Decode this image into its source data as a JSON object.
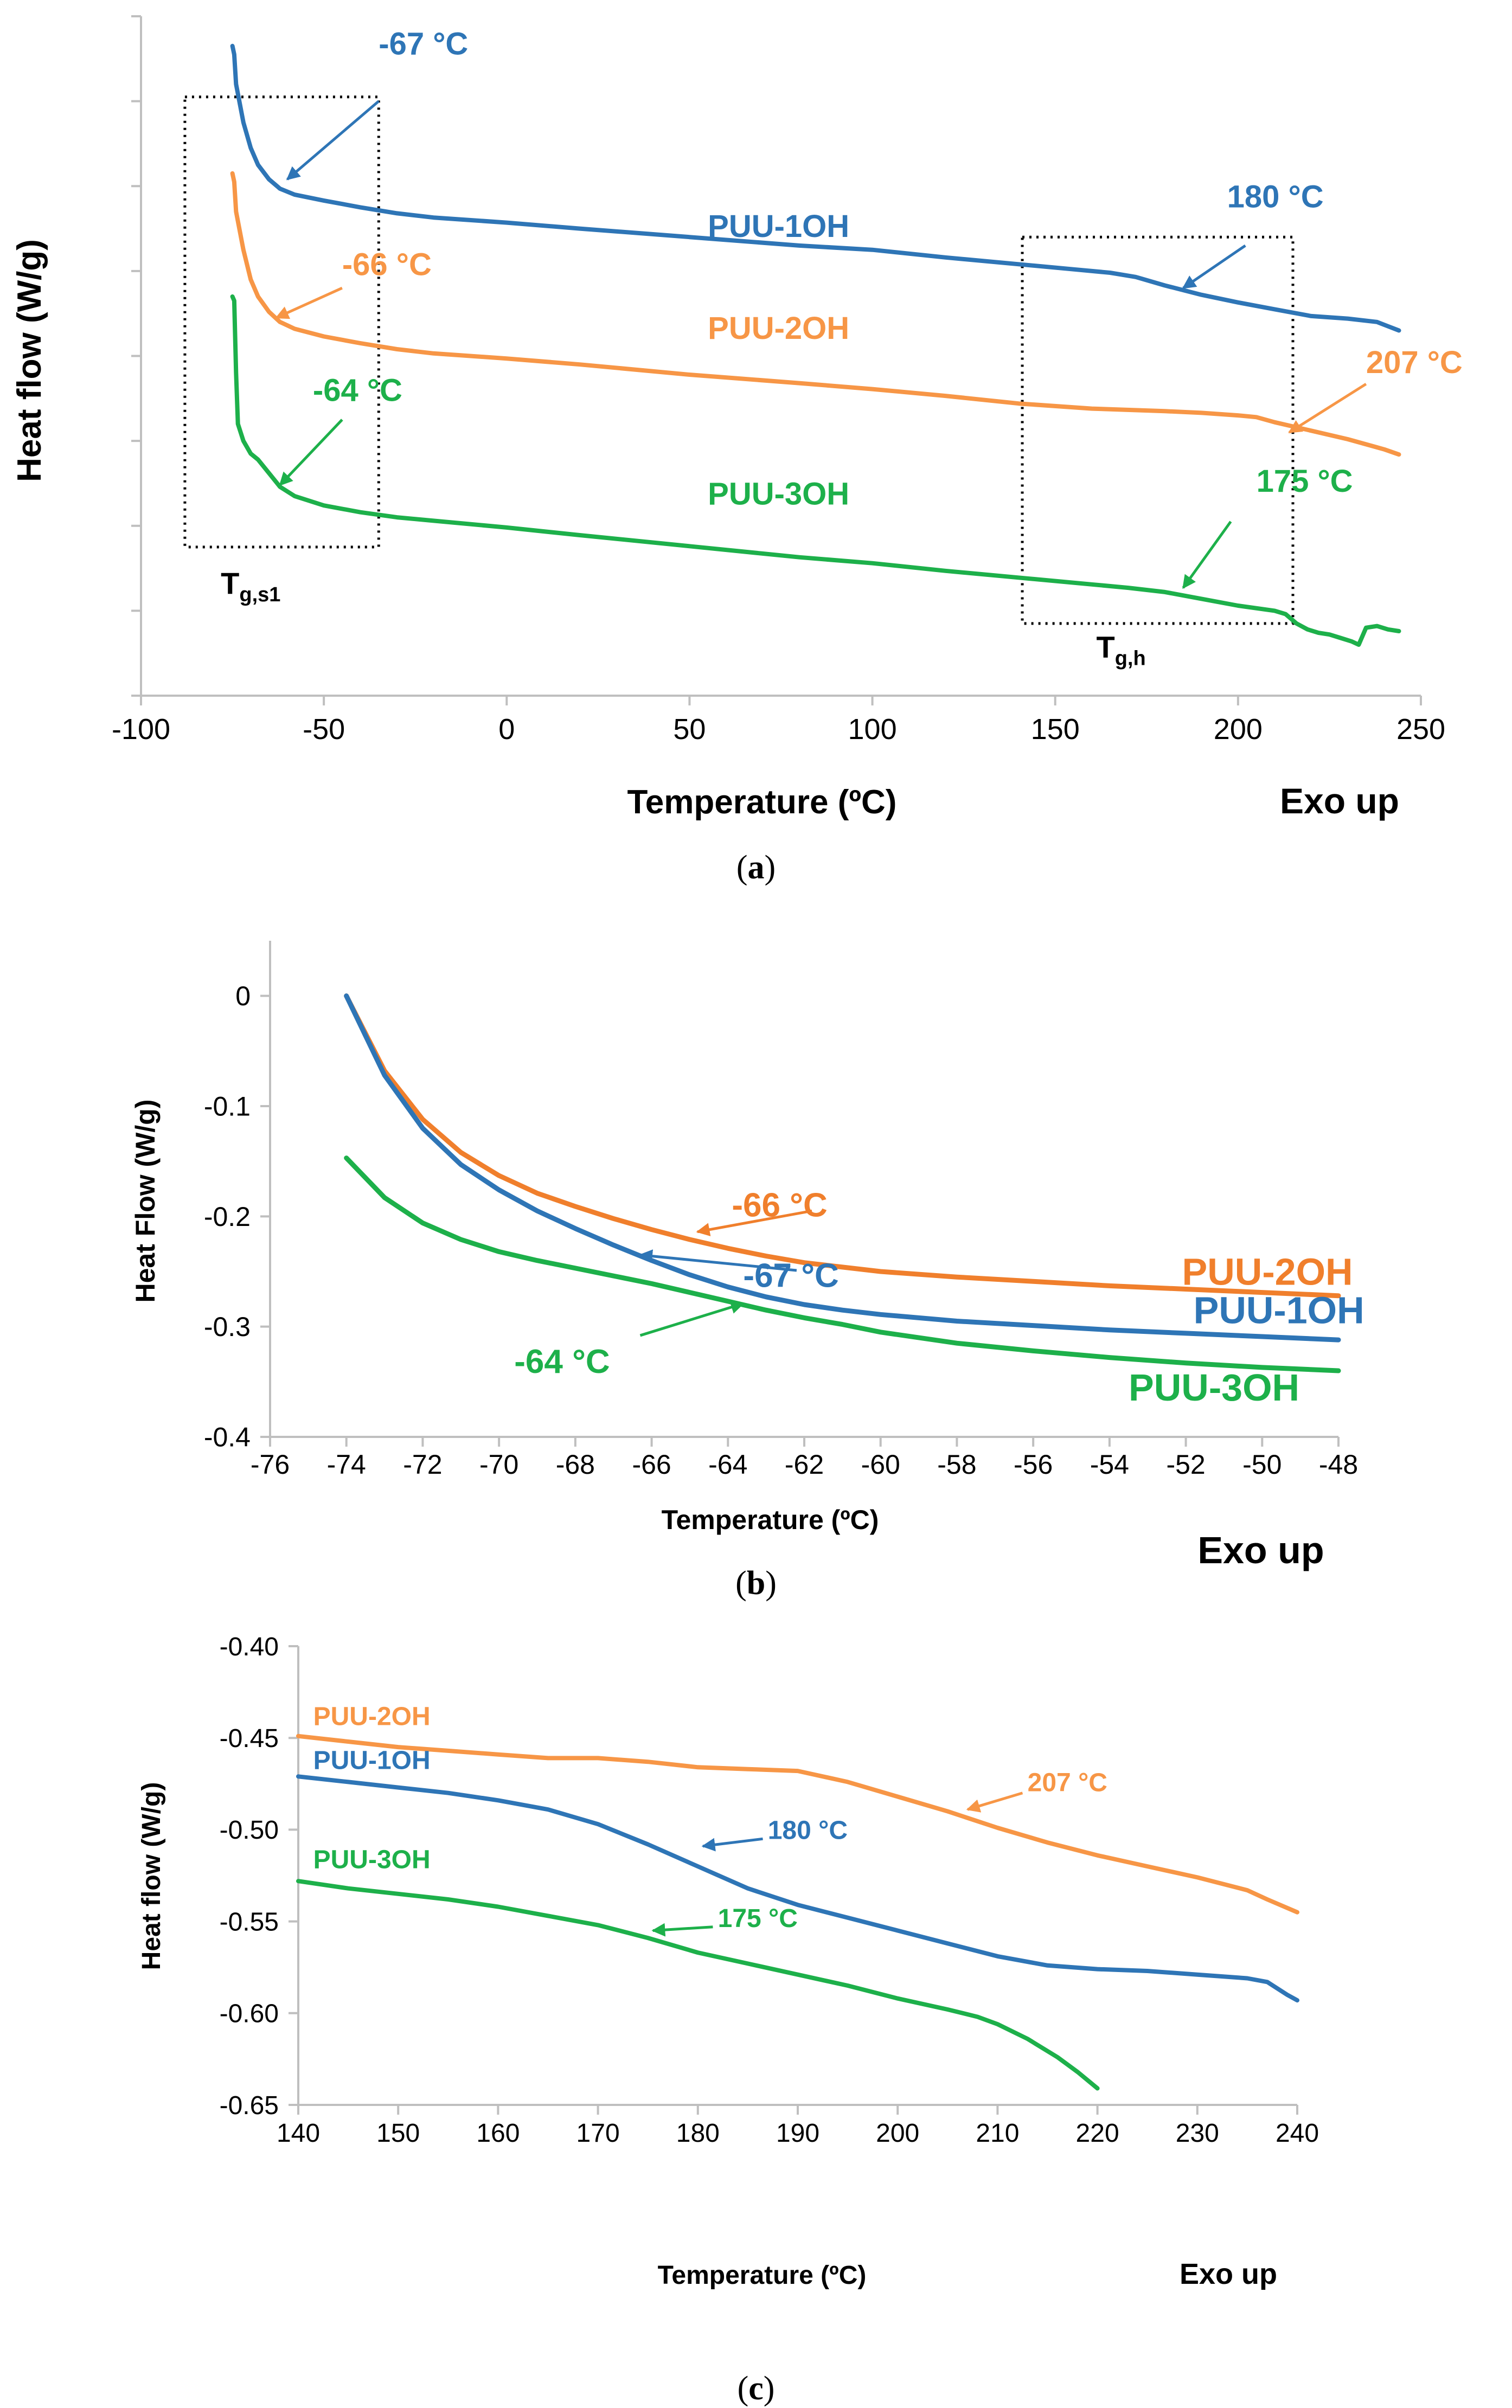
{
  "colors": {
    "blue": "#2E75B6",
    "orange": "#F79646",
    "green": "#1DB04A",
    "b_blue": "#2E75B6",
    "b_orange": "#F07F2C",
    "b_green": "#1DB04A"
  },
  "captions": {
    "a": "a",
    "b": "b",
    "c": "c"
  },
  "chart_data": [
    {
      "id": "a",
      "type": "line",
      "xlabel": "Temperature (ºC)",
      "ylabel": "Heat flow (W/g)",
      "corner_note": "Exo up",
      "xlim": [
        -100,
        250
      ],
      "xticks": [
        "-100",
        "-50",
        "0",
        "50",
        "100",
        "150",
        "200",
        "250"
      ],
      "ylim": [
        0,
        8
      ],
      "ytick_count": 8,
      "y_tick_labels_shown": false,
      "series": [
        {
          "name": "PUU-1OH",
          "color": "blue",
          "label_at": [
            55,
            5.4
          ],
          "x": [
            -75,
            -74.5,
            -74,
            -72,
            -70,
            -68,
            -65,
            -62,
            -58,
            -50,
            -40,
            -30,
            -20,
            0,
            20,
            50,
            80,
            100,
            120,
            140,
            155,
            165,
            172,
            180,
            190,
            200,
            210,
            220,
            230,
            238,
            241,
            244
          ],
          "y": [
            7.65,
            7.55,
            7.2,
            6.75,
            6.45,
            6.25,
            6.08,
            5.97,
            5.9,
            5.83,
            5.75,
            5.68,
            5.63,
            5.57,
            5.5,
            5.4,
            5.3,
            5.25,
            5.16,
            5.08,
            5.02,
            4.98,
            4.93,
            4.83,
            4.72,
            4.63,
            4.55,
            4.47,
            4.44,
            4.4,
            4.35,
            4.3
          ]
        },
        {
          "name": "PUU-2OH",
          "color": "orange",
          "label_at": [
            55,
            4.2
          ],
          "x": [
            -75,
            -74.5,
            -74,
            -72,
            -70,
            -68,
            -65,
            -62,
            -58,
            -50,
            -40,
            -30,
            -20,
            0,
            20,
            50,
            80,
            100,
            120,
            140,
            160,
            180,
            190,
            200,
            205,
            210,
            220,
            230,
            240,
            244
          ],
          "y": [
            6.15,
            6.05,
            5.7,
            5.25,
            4.9,
            4.7,
            4.52,
            4.4,
            4.32,
            4.23,
            4.15,
            4.08,
            4.03,
            3.97,
            3.9,
            3.78,
            3.68,
            3.61,
            3.53,
            3.44,
            3.38,
            3.35,
            3.33,
            3.3,
            3.28,
            3.22,
            3.12,
            3.02,
            2.9,
            2.84
          ]
        },
        {
          "name": "PUU-3OH",
          "color": "green",
          "label_at": [
            55,
            2.25
          ],
          "x": [
            -75,
            -74.5,
            -74,
            -73.5,
            -72,
            -70,
            -68,
            -65,
            -62,
            -58,
            -50,
            -40,
            -30,
            -20,
            0,
            20,
            50,
            80,
            100,
            120,
            140,
            160,
            170,
            180,
            190,
            200,
            210,
            213,
            216,
            219,
            222,
            225,
            228,
            231,
            233,
            235,
            238,
            241,
            244
          ],
          "y": [
            4.7,
            4.65,
            3.8,
            3.2,
            3.0,
            2.85,
            2.78,
            2.62,
            2.46,
            2.35,
            2.24,
            2.16,
            2.1,
            2.06,
            1.98,
            1.89,
            1.76,
            1.63,
            1.56,
            1.47,
            1.39,
            1.31,
            1.27,
            1.22,
            1.14,
            1.06,
            1.0,
            0.96,
            0.85,
            0.78,
            0.74,
            0.72,
            0.68,
            0.64,
            0.6,
            0.8,
            0.82,
            0.78,
            0.76
          ]
        }
      ],
      "annotations": [
        {
          "text": "-67 °C",
          "color": "blue",
          "at": [
            -35,
            7.55
          ],
          "arrow": [
            [
              -35,
              7
            ],
            [
              -60,
              6.08
            ]
          ]
        },
        {
          "text": "-66 °C",
          "color": "orange",
          "at": [
            -45,
            4.95
          ],
          "arrow": [
            [
              -45,
              4.8
            ],
            [
              -63,
              4.45
            ]
          ]
        },
        {
          "text": "-64 °C",
          "color": "green",
          "at": [
            -53,
            3.47
          ],
          "arrow": [
            [
              -45,
              3.25
            ],
            [
              -62,
              2.48
            ]
          ]
        },
        {
          "text": "180 °C",
          "color": "blue",
          "at": [
            197,
            5.75
          ],
          "arrow": [
            [
              202,
              5.3
            ],
            [
              185,
              4.8
            ]
          ]
        },
        {
          "text": "207 °C",
          "color": "orange",
          "at": [
            235,
            3.8
          ],
          "arrow": [
            [
              235,
              3.67
            ],
            [
              214,
              3.1
            ]
          ]
        },
        {
          "text": "175 °C",
          "color": "green",
          "at": [
            205,
            2.4
          ],
          "arrow": [
            [
              198,
              2.05
            ],
            [
              185,
              1.27
            ]
          ]
        }
      ],
      "boxes": [
        {
          "label_main": "T",
          "label_sub": "g,s1",
          "x": [
            -88,
            -35
          ],
          "y": [
            1.75,
            7.05
          ],
          "label_at": [
            -70,
            1.2
          ]
        },
        {
          "label_main": "T",
          "label_sub": "g,h",
          "x": [
            141,
            215
          ],
          "y": [
            0.85,
            5.4
          ],
          "label_at": [
            168,
            0.45
          ]
        }
      ]
    },
    {
      "id": "b",
      "type": "line",
      "xlabel": "Temperature (ºC)",
      "ylabel": "Heat Flow (W/g)",
      "corner_note": "Exo up",
      "xlim": [
        -76,
        -48
      ],
      "xticks": [
        "-76",
        "-74",
        "-72",
        "-70",
        "-68",
        "-66",
        "-64",
        "-62",
        "-60",
        "-58",
        "-56",
        "-54",
        "-52",
        "-50",
        "-48"
      ],
      "ylim": [
        -0.4,
        0.05
      ],
      "yticks": [
        "-0.4",
        "-0.3",
        "-0.2",
        "-0.1",
        "0"
      ],
      "series": [
        {
          "name": "PUU-2OH",
          "color": "b_orange",
          "label_at": [
            -52.1,
            -0.262
          ],
          "x": [
            -74,
            -73,
            -72,
            -71,
            -70,
            -69,
            -68,
            -67,
            -66,
            -65,
            -64,
            -63,
            -62,
            -61,
            -60,
            -58,
            -56,
            -54,
            -52,
            -50,
            -48
          ],
          "y": [
            0.0,
            -0.068,
            -0.112,
            -0.142,
            -0.163,
            -0.179,
            -0.191,
            -0.202,
            -0.212,
            -0.221,
            -0.229,
            -0.236,
            -0.242,
            -0.246,
            -0.25,
            -0.255,
            -0.259,
            -0.263,
            -0.266,
            -0.269,
            -0.272
          ]
        },
        {
          "name": "PUU-1OH",
          "color": "b_blue",
          "label_at": [
            -51.8,
            -0.297
          ],
          "x": [
            -74,
            -73,
            -72,
            -71,
            -70,
            -69,
            -68,
            -67,
            -66,
            -65,
            -64,
            -63,
            -62,
            -61,
            -60,
            -58,
            -56,
            -54,
            -52,
            -50,
            -48
          ],
          "y": [
            0.0,
            -0.072,
            -0.12,
            -0.153,
            -0.176,
            -0.195,
            -0.211,
            -0.226,
            -0.24,
            -0.253,
            -0.264,
            -0.273,
            -0.28,
            -0.285,
            -0.289,
            -0.295,
            -0.299,
            -0.303,
            -0.306,
            -0.309,
            -0.312
          ]
        },
        {
          "name": "PUU-3OH",
          "color": "b_green",
          "label_at": [
            -53.5,
            -0.367
          ],
          "x": [
            -74,
            -73,
            -72,
            -71,
            -70,
            -69,
            -68,
            -67,
            -66,
            -65,
            -64,
            -63,
            -62,
            -61,
            -60,
            -58,
            -56,
            -54,
            -52,
            -50,
            -48
          ],
          "y": [
            -0.147,
            -0.183,
            -0.206,
            -0.221,
            -0.232,
            -0.24,
            -0.247,
            -0.254,
            -0.261,
            -0.269,
            -0.277,
            -0.285,
            -0.292,
            -0.298,
            -0.305,
            -0.315,
            -0.322,
            -0.328,
            -0.333,
            -0.337,
            -0.34
          ]
        }
      ],
      "annotations": [
        {
          "text": "-66 °C",
          "color": "b_orange",
          "at": [
            -63.9,
            -0.2
          ],
          "arrow": [
            [
              -61.8,
              -0.195
            ],
            [
              -64.8,
              -0.214
            ]
          ]
        },
        {
          "text": "-67 °C",
          "color": "b_blue",
          "at": [
            -63.6,
            -0.264
          ],
          "arrow": [
            [
              -62.2,
              -0.249
            ],
            [
              -66.3,
              -0.235
            ]
          ]
        },
        {
          "text": "-64 °C",
          "color": "b_green",
          "at": [
            -69.6,
            -0.342
          ],
          "arrow": [
            [
              -66.3,
              -0.308
            ],
            [
              -63.6,
              -0.279
            ]
          ]
        }
      ]
    },
    {
      "id": "c",
      "type": "line",
      "xlabel": "Temperature (ºC)",
      "ylabel": "Heat flow (W/g)",
      "corner_note": "Exo up",
      "xlim": [
        140,
        240
      ],
      "xticks": [
        "140",
        "150",
        "160",
        "170",
        "180",
        "190",
        "200",
        "210",
        "220",
        "230",
        "240"
      ],
      "ylim": [
        -0.65,
        -0.4
      ],
      "yticks": [
        "-0.65",
        "-0.60",
        "-0.55",
        "-0.50",
        "-0.45",
        "-0.40"
      ],
      "series": [
        {
          "name": "PUU-2OH",
          "color": "orange",
          "label_at": [
            141.5,
            -0.443
          ],
          "x": [
            140,
            145,
            150,
            155,
            160,
            165,
            170,
            175,
            180,
            185,
            190,
            195,
            200,
            205,
            210,
            215,
            220,
            225,
            230,
            235,
            237,
            240
          ],
          "y": [
            -0.449,
            -0.452,
            -0.455,
            -0.457,
            -0.459,
            -0.461,
            -0.461,
            -0.463,
            -0.466,
            -0.467,
            -0.468,
            -0.474,
            -0.482,
            -0.49,
            -0.499,
            -0.507,
            -0.514,
            -0.52,
            -0.526,
            -0.533,
            -0.538,
            -0.545
          ]
        },
        {
          "name": "PUU-1OH",
          "color": "blue",
          "label_at": [
            141.5,
            -0.467
          ],
          "x": [
            140,
            145,
            150,
            155,
            160,
            165,
            170,
            175,
            180,
            185,
            190,
            195,
            200,
            205,
            210,
            215,
            220,
            225,
            230,
            235,
            237,
            239,
            240
          ],
          "y": [
            -0.471,
            -0.474,
            -0.477,
            -0.48,
            -0.484,
            -0.489,
            -0.497,
            -0.508,
            -0.52,
            -0.532,
            -0.541,
            -0.548,
            -0.555,
            -0.562,
            -0.569,
            -0.574,
            -0.576,
            -0.577,
            -0.579,
            -0.581,
            -0.583,
            -0.59,
            -0.593
          ]
        },
        {
          "name": "PUU-3OH",
          "color": "green",
          "label_at": [
            141.5,
            -0.521
          ],
          "x": [
            140,
            145,
            150,
            155,
            160,
            165,
            170,
            175,
            180,
            185,
            190,
            195,
            200,
            205,
            208,
            210,
            213,
            216,
            218,
            220
          ],
          "y": [
            -0.528,
            -0.532,
            -0.535,
            -0.538,
            -0.542,
            -0.547,
            -0.552,
            -0.559,
            -0.567,
            -0.573,
            -0.579,
            -0.585,
            -0.592,
            -0.598,
            -0.602,
            -0.606,
            -0.614,
            -0.624,
            -0.632,
            -0.641
          ]
        }
      ],
      "annotations": [
        {
          "text": "207 °C",
          "color": "orange",
          "at": [
            213,
            -0.479
          ],
          "arrow": [
            [
              212.5,
              -0.48
            ],
            [
              207,
              -0.489
            ]
          ]
        },
        {
          "text": "180 °C",
          "color": "blue",
          "at": [
            187,
            -0.505
          ],
          "arrow": [
            [
              186.5,
              -0.505
            ],
            [
              180.5,
              -0.509
            ]
          ]
        },
        {
          "text": "175 °C",
          "color": "green",
          "at": [
            182,
            -0.553
          ],
          "arrow": [
            [
              181.5,
              -0.553
            ],
            [
              175.5,
              -0.555
            ]
          ]
        }
      ]
    }
  ]
}
